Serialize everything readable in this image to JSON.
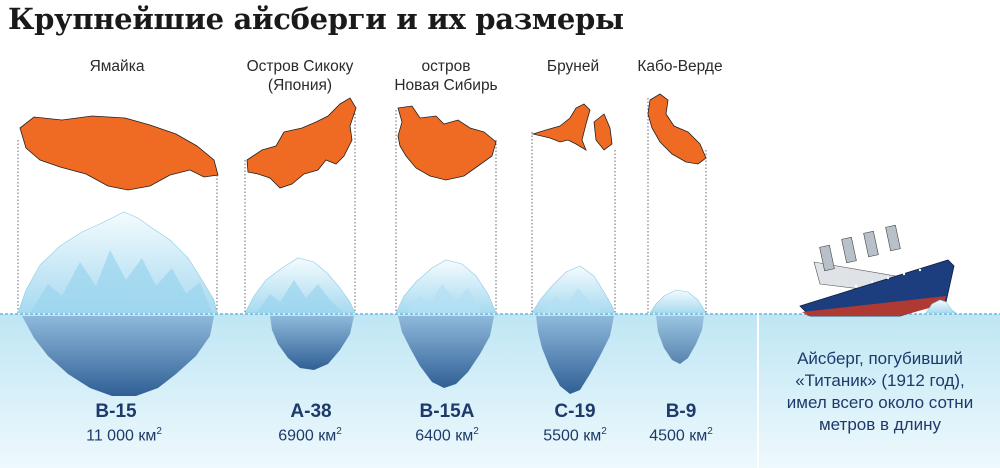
{
  "title": "Крупнейшие айсберги и их размеры",
  "icebergs": [
    {
      "country": [
        "Ямайка"
      ],
      "code": "B-15",
      "area_value": "11 000 км",
      "area_unit_power": "2"
    },
    {
      "country": [
        "Остров Сикоку",
        "(Япония)"
      ],
      "code": "A-38",
      "area_value": "6900 км",
      "area_unit_power": "2"
    },
    {
      "country": [
        "остров",
        "Новая Сибирь"
      ],
      "code": "B-15A",
      "area_value": "6400 км",
      "area_unit_power": "2"
    },
    {
      "country": [
        "Бруней"
      ],
      "code": "C-19",
      "area_value": "5500 км",
      "area_unit_power": "2"
    },
    {
      "country": [
        "Кабо-Верде"
      ],
      "code": "B-9",
      "area_value": "4500 км",
      "area_unit_power": "2"
    }
  ],
  "titanic_note": [
    "Айсберг, погубивший",
    "«Титаник» (1912 год),",
    "имел всего около сотни",
    "метров в длину"
  ],
  "colors": {
    "island": "#ef6a22",
    "water": "#d8f0f8",
    "ice": "#c3e8f5",
    "deep_ice": "#5f8fbb",
    "text": "#1e3a6a",
    "ship_hull": "#1d3e7e"
  }
}
